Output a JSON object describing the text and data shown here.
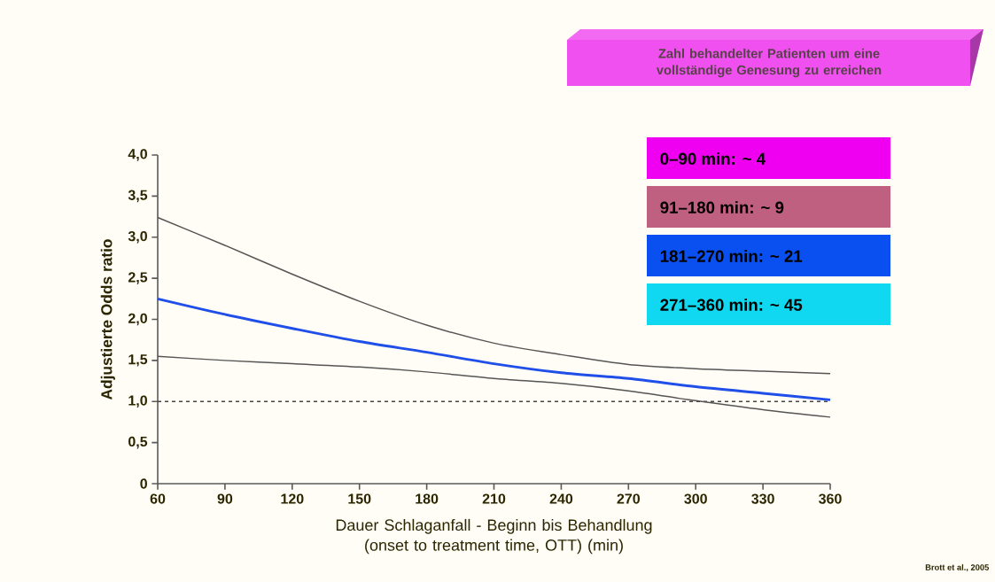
{
  "chart_data": {
    "type": "line",
    "xlabel": "Dauer Schlaganfall - Beginn bis Behandlung (onset to treatment time, OTT) (min)",
    "ylabel": "Adjustierte Odds ratio",
    "x": [
      60,
      90,
      120,
      150,
      180,
      210,
      240,
      270,
      300,
      330,
      360
    ],
    "series": [
      {
        "color": "#555555",
        "values": [
          3.24,
          2.9,
          2.55,
          2.22,
          1.93,
          1.71,
          1.57,
          1.45,
          1.4,
          1.37,
          1.34
        ]
      },
      {
        "color": "#1f4fe8",
        "values": [
          2.25,
          2.06,
          1.89,
          1.73,
          1.6,
          1.46,
          1.35,
          1.28,
          1.18,
          1.1,
          1.02
        ]
      },
      {
        "color": "#555555",
        "values": [
          1.55,
          1.5,
          1.46,
          1.42,
          1.36,
          1.28,
          1.22,
          1.13,
          1.01,
          0.9,
          0.81
        ]
      }
    ],
    "xlim": [
      60,
      360
    ],
    "xticks": [
      60,
      90,
      120,
      150,
      180,
      210,
      240,
      270,
      300,
      330,
      360
    ],
    "ylim": [
      0,
      4
    ],
    "yticks": [
      0,
      {
        "value": 0.5,
        "label": "0,5"
      },
      {
        "value": 1,
        "label": "1,0"
      },
      {
        "value": 1.5,
        "label": "1,5"
      },
      {
        "value": 2,
        "label": "2,0"
      },
      {
        "value": 2.5,
        "label": "2,5"
      },
      {
        "value": 3,
        "label": "3,0"
      },
      {
        "value": 3.5,
        "label": "3,5"
      },
      {
        "value": 4,
        "label": "4,0"
      }
    ],
    "ref_lines": [
      {
        "axis": "y",
        "value": 1,
        "line_style": "dashed",
        "color": "#444444"
      }
    ],
    "grid": false,
    "marker": "none",
    "line_style": "solid",
    "annotations": [
      "Zahl behandelter Patienten um eine vollständige Genesung zu erreichen",
      "0–90 min: ~ 4",
      "91–180 min: ~ 9",
      "181–270 min: ~ 21",
      "271–360 min: ~ 45",
      "Brott et al., 2005"
    ]
  }
}
